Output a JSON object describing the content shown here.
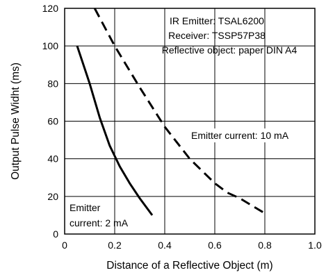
{
  "chart_data": {
    "type": "line",
    "title": "",
    "xlabel": "Distance of a Reflective Object (m)",
    "ylabel": "Output Pulse Widht (ms)",
    "xlim": [
      0,
      1.0
    ],
    "ylim": [
      0,
      120
    ],
    "x_ticks": [
      "0",
      "0.2",
      "0.4",
      "0.6",
      "0.8",
      "1.0"
    ],
    "y_ticks": [
      "0",
      "20",
      "40",
      "60",
      "80",
      "100",
      "120"
    ],
    "grid": true,
    "series": [
      {
        "label": "Emitter current: 2 mA",
        "style": "solid",
        "color": "#000000",
        "points": [
          [
            0.05,
            100
          ],
          [
            0.1,
            80
          ],
          [
            0.14,
            62
          ],
          [
            0.18,
            47
          ],
          [
            0.22,
            36
          ],
          [
            0.26,
            27
          ],
          [
            0.3,
            19
          ],
          [
            0.35,
            10
          ]
        ]
      },
      {
        "label": "Emitter current: 10 mA",
        "style": "dashed",
        "color": "#000000",
        "points": [
          [
            0.12,
            120
          ],
          [
            0.2,
            100
          ],
          [
            0.3,
            78
          ],
          [
            0.4,
            57
          ],
          [
            0.5,
            40
          ],
          [
            0.6,
            27
          ],
          [
            0.65,
            22
          ],
          [
            0.7,
            19
          ],
          [
            0.8,
            11
          ]
        ]
      }
    ],
    "annotations": [
      {
        "id": "setup-emitter",
        "text": "IR Emitter: TSAL6200",
        "anchor": "middle"
      },
      {
        "id": "setup-receiver",
        "text": "Receiver: TSSP57P38",
        "anchor": "middle"
      },
      {
        "id": "setup-object",
        "text": "Reflective object: paper DIN A4",
        "anchor": "middle"
      },
      {
        "id": "label-10ma",
        "text": "Emitter current: 10 mA",
        "anchor": "start"
      },
      {
        "id": "label-2ma-line1",
        "text": "Emitter",
        "anchor": "start"
      },
      {
        "id": "label-2ma-line2",
        "text": "current: 2 mA",
        "anchor": "start"
      }
    ]
  }
}
